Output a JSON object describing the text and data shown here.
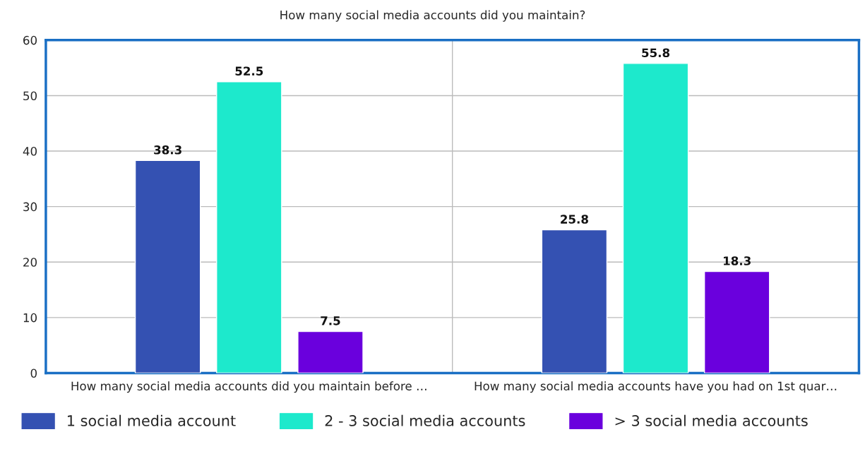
{
  "chart_data": {
    "type": "bar",
    "title": "How many social media accounts did you maintain?",
    "categories": [
      "How many social media accounts did you maintain before …",
      "How many social media accounts have you had on 1st quar…"
    ],
    "series": [
      {
        "name": "1 social media account",
        "color": "#3451b2",
        "values": [
          38.3,
          25.8
        ]
      },
      {
        "name": "2 - 3 social media accounts",
        "color": "#1de9cc",
        "values": [
          52.5,
          55.8
        ]
      },
      {
        "name": "> 3 social media accounts",
        "color": "#6a00dd",
        "values": [
          7.5,
          18.3
        ]
      }
    ],
    "ylim": [
      0,
      60
    ],
    "yticks": [
      0,
      10,
      20,
      30,
      40,
      50,
      60
    ],
    "grid": "y",
    "legend": "bottom",
    "data_labels": true
  }
}
